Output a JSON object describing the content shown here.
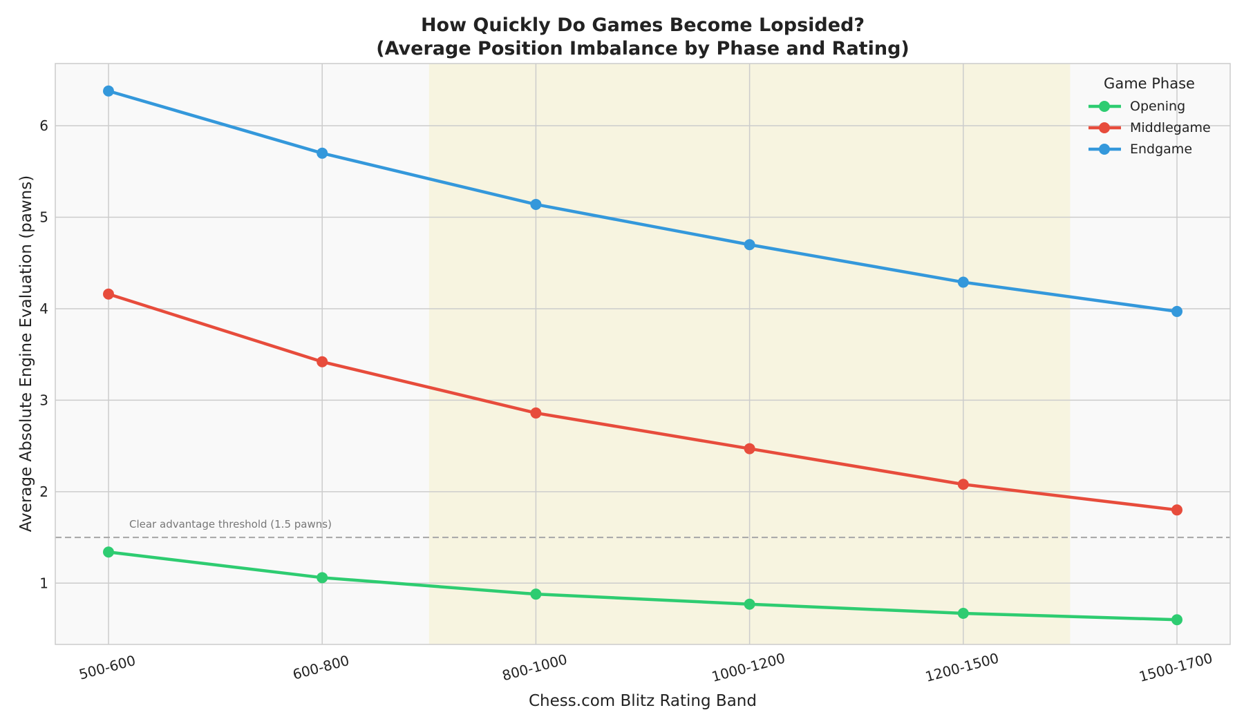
{
  "chart_data": {
    "type": "line",
    "title_line1": "How Quickly Do Games Become Lopsided?",
    "title_line2": "(Average Position Imbalance by Phase and Rating)",
    "xlabel": "Chess.com Blitz Rating Band",
    "ylabel": "Average Absolute Engine Evaluation (pawns)",
    "categories": [
      "500-600",
      "600-800",
      "800-1000",
      "1000-1200",
      "1200-1500",
      "1500-1700"
    ],
    "ylim": [
      0.33,
      6.68
    ],
    "yticks": [
      1,
      2,
      3,
      4,
      5,
      6
    ],
    "grid": true,
    "series": [
      {
        "name": "Opening",
        "color": "#2ecc71",
        "values": [
          1.34,
          1.06,
          0.88,
          0.77,
          0.67,
          0.6
        ]
      },
      {
        "name": "Middlegame",
        "color": "#e74c3c",
        "values": [
          4.16,
          3.42,
          2.86,
          2.47,
          2.08,
          1.8
        ]
      },
      {
        "name": "Endgame",
        "color": "#3498db",
        "values": [
          6.38,
          5.7,
          5.14,
          4.7,
          4.29,
          3.97
        ]
      }
    ],
    "threshold": {
      "value": 1.5,
      "label": "Clear advantage threshold (1.5 pawns)",
      "color": "#aaaaaa"
    },
    "shaded_band": {
      "from_category_index": 1.5,
      "to_category_index": 4.5,
      "color": "#f7f3dc"
    },
    "legend": {
      "title": "Game Phase",
      "position": "top-right"
    }
  }
}
